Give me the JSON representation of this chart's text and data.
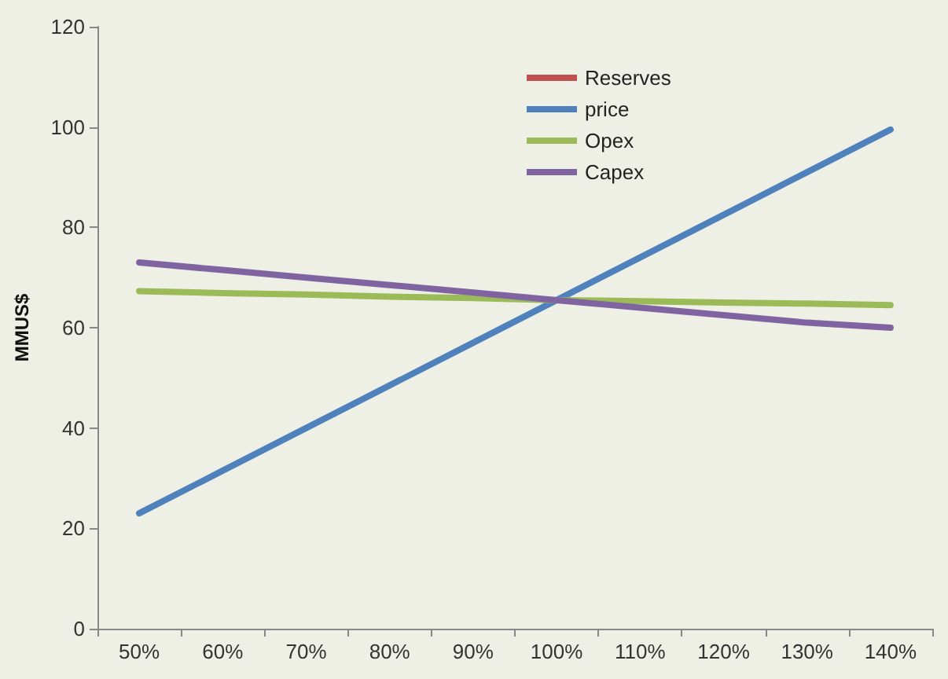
{
  "chart_data": {
    "type": "line",
    "ylabel": "MMUS$",
    "categories": [
      "50%",
      "60%",
      "70%",
      "80%",
      "90%",
      "100%",
      "110%",
      "120%",
      "130%",
      "140%"
    ],
    "series": [
      {
        "name": "Reserves",
        "color": "#c0504d",
        "values": [
          null,
          null,
          null,
          null,
          null,
          null,
          null,
          null,
          null,
          null
        ]
      },
      {
        "name": "price",
        "color": "#4f81bd",
        "values": [
          23,
          31.5,
          40,
          48.5,
          57,
          65.5,
          74,
          82.5,
          91,
          99.5
        ]
      },
      {
        "name": "Opex",
        "color": "#9bbb59",
        "values": [
          67.3,
          66.9,
          66.6,
          66.2,
          65.9,
          65.5,
          65.3,
          65,
          64.8,
          64.5
        ]
      },
      {
        "name": "Capex",
        "color": "#8064a2",
        "values": [
          73,
          71.5,
          70,
          68.5,
          67,
          65.5,
          64,
          62.5,
          61,
          60
        ]
      }
    ],
    "ylim": [
      0,
      120
    ],
    "yticks": [
      0,
      20,
      40,
      60,
      80,
      100,
      120
    ],
    "grid": false,
    "legend": "top right",
    "marker": "none",
    "line_style": "solid"
  }
}
